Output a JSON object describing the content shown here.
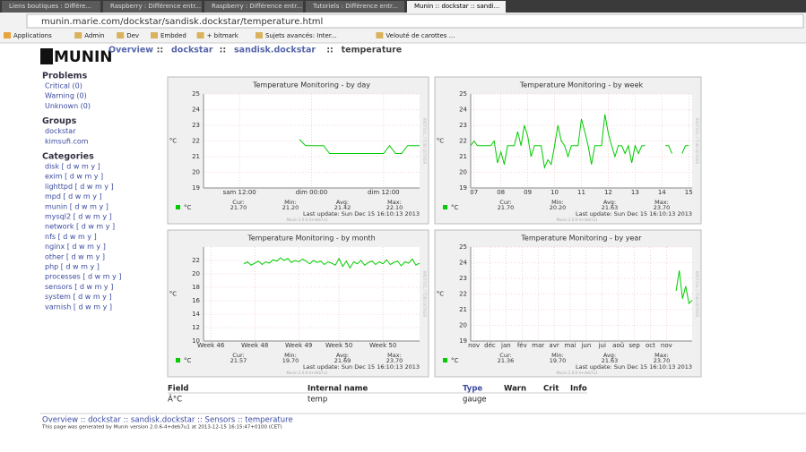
{
  "browser": {
    "tabs": [
      "Liens boutiques : Différe...",
      "Raspberry : Différence entr...",
      "Raspberry : Différence entr...",
      "Tutoriels : Différence entr...",
      "Munin :: dockstar :: sandi..."
    ],
    "url": "munin.marie.com/dockstar/sandisk.dockstar/temperature.html",
    "bookmarks": [
      "Applications",
      "Admin",
      "Dev",
      "Embded",
      "+ bitmark",
      "Sujets avancés: Inter...",
      "Velouté de carottes ..."
    ]
  },
  "header": {
    "logo": "MUNIN",
    "crumbs": [
      "Overview",
      "::",
      "dockstar",
      "::",
      "sandisk.dockstar",
      "::",
      "temperature"
    ]
  },
  "sidebar": {
    "problems_title": "Problems",
    "problems": [
      "Critical (0)",
      "Warning (0)",
      "Unknown (0)"
    ],
    "groups_title": "Groups",
    "groups": [
      "dockstar",
      "kimsufi.com"
    ],
    "categories_title": "Categories",
    "categories": [
      "disk [ d w m y ]",
      "exim [ d w m y ]",
      "lighttpd [ d w m y ]",
      "mpd [ d w m y ]",
      "munin [ d w m y ]",
      "mysql2 [ d w m y ]",
      "network [ d w m y ]",
      "nfs [ d w m y ]",
      "nginx [ d w m y ]",
      "other [ d w m y ]",
      "php [ d w m y ]",
      "processes [ d w m y ]",
      "sensors [ d w m y ]",
      "system [ d w m y ]",
      "varnish [ d w m y ]"
    ]
  },
  "chart_data": [
    {
      "type": "line",
      "title": "Temperature Monitoring - by day",
      "ylabel": "°C",
      "ylim": [
        19,
        25
      ],
      "yticks": [
        19,
        20,
        21,
        22,
        23,
        24,
        25
      ],
      "xlim": [
        0,
        36
      ],
      "xticks": [
        {
          "value": 6,
          "label": "sam 12:00"
        },
        {
          "value": 18,
          "label": "dim 00:00"
        },
        {
          "value": 30,
          "label": "dim 12:00"
        }
      ],
      "series": [
        {
          "name": "°C",
          "color": "#00cc00",
          "values": [
            null,
            null,
            null,
            null,
            null,
            null,
            null,
            null,
            null,
            null,
            null,
            null,
            null,
            null,
            null,
            null,
            22.1,
            21.7,
            21.7,
            21.7,
            21.7,
            21.2,
            21.2,
            21.2,
            21.2,
            21.2,
            21.2,
            21.2,
            21.2,
            21.2,
            21.2,
            21.7,
            21.2,
            21.2,
            21.7,
            21.7,
            21.7
          ]
        }
      ],
      "stats_labels": [
        "Cur:",
        "Min:",
        "Avg:",
        "Max:"
      ],
      "stats": [
        "21.70",
        "21.20",
        "21.42",
        "22.10"
      ],
      "last_update": "Last update:  Sun Dec 15 16:10:13 2013",
      "version": "Munin 2.0.6-4+deb7u1",
      "watermark": "RRDTOOL / TOBI OETIKER"
    },
    {
      "type": "line",
      "title": "Temperature Monitoring - by week",
      "ylabel": "°C",
      "ylim": [
        19,
        25
      ],
      "yticks": [
        19,
        20,
        21,
        22,
        23,
        24,
        25
      ],
      "xlim": [
        0,
        66
      ],
      "xticks": [
        {
          "value": 1,
          "label": "07"
        },
        {
          "value": 9,
          "label": "08"
        },
        {
          "value": 17,
          "label": "09"
        },
        {
          "value": 25,
          "label": "10"
        },
        {
          "value": 33,
          "label": "11"
        },
        {
          "value": 41,
          "label": "12"
        },
        {
          "value": 49,
          "label": "13"
        },
        {
          "value": 57,
          "label": "14"
        },
        {
          "value": 65,
          "label": "15"
        }
      ],
      "series": [
        {
          "name": "°C",
          "color": "#00cc00",
          "values": [
            21.7,
            22.0,
            21.7,
            21.7,
            21.7,
            21.7,
            21.7,
            22.0,
            20.6,
            21.3,
            20.5,
            21.7,
            21.7,
            21.7,
            22.6,
            21.7,
            23.0,
            22.3,
            21.0,
            21.7,
            21.7,
            21.7,
            20.3,
            20.8,
            20.5,
            21.7,
            23.0,
            22.0,
            21.7,
            21.0,
            21.7,
            21.7,
            21.7,
            23.4,
            22.6,
            21.7,
            20.5,
            21.7,
            21.7,
            21.7,
            23.7,
            22.5,
            21.7,
            21.0,
            21.7,
            21.7,
            21.2,
            21.7,
            20.6,
            21.7,
            21.2,
            21.7,
            21.7,
            null,
            null,
            null,
            null,
            null,
            21.7,
            21.7,
            21.2,
            null,
            null,
            21.2,
            21.7,
            21.7,
            null
          ]
        }
      ],
      "stats_labels": [
        "Cur:",
        "Min:",
        "Avg:",
        "Max:"
      ],
      "stats": [
        "21.70",
        "20.20",
        "21.63",
        "23.70"
      ],
      "last_update": "Last update:  Sun Dec 15 16:10:13 2013",
      "version": "Munin 2.0.6-4+deb7u1",
      "watermark": "RRDTOOL / TOBI OETIKER"
    },
    {
      "type": "line",
      "title": "Temperature Monitoring - by month",
      "ylabel": "°C",
      "ylim": [
        10,
        24
      ],
      "yticks": [
        10,
        12,
        14,
        16,
        18,
        20,
        22
      ],
      "xlim": [
        0,
        59
      ],
      "xticks": [
        {
          "value": 2,
          "label": "Week 46"
        },
        {
          "value": 14,
          "label": "Week 48"
        },
        {
          "value": 26,
          "label": "Week 49"
        },
        {
          "value": 37,
          "label": "Week 50"
        },
        {
          "value": 49,
          "label": "Week 50"
        }
      ],
      "series": [
        {
          "name": "°C",
          "color": "#00cc00",
          "values": [
            null,
            null,
            null,
            null,
            null,
            null,
            null,
            null,
            null,
            null,
            null,
            21.5,
            21.8,
            21.3,
            21.6,
            21.9,
            21.4,
            21.8,
            21.6,
            22.1,
            21.9,
            22.4,
            22.0,
            22.3,
            21.7,
            22.0,
            21.8,
            22.2,
            21.9,
            21.5,
            22.0,
            21.7,
            21.9,
            21.4,
            21.8,
            21.6,
            21.3,
            22.3,
            21.1,
            21.9,
            20.9,
            21.8,
            21.5,
            22.0,
            21.3,
            21.7,
            21.9,
            21.4,
            21.8,
            21.5,
            22.1,
            21.4,
            21.7,
            21.9,
            21.2,
            21.8,
            21.6,
            22.2,
            21.3,
            21.6
          ]
        }
      ],
      "stats_labels": [
        "Cur:",
        "Min:",
        "Avg:",
        "Max:"
      ],
      "stats": [
        "21.57",
        "19.70",
        "21.69",
        "23.70"
      ],
      "last_update": "Last update:  Sun Dec 15 16:10:13 2013",
      "version": "Munin 2.0.6-4+deb7u1",
      "watermark": "RRDTOOL / TOBI OETIKER"
    },
    {
      "type": "line",
      "title": "Temperature Monitoring - by year",
      "ylabel": "°C",
      "ylim": [
        19,
        25
      ],
      "yticks": [
        19,
        20,
        21,
        22,
        23,
        24,
        25
      ],
      "xlim": [
        0,
        69
      ],
      "xticks": [
        {
          "value": 1,
          "label": "nov"
        },
        {
          "value": 6,
          "label": "déc"
        },
        {
          "value": 11,
          "label": "jan"
        },
        {
          "value": 16,
          "label": "fév"
        },
        {
          "value": 21,
          "label": "mar"
        },
        {
          "value": 26,
          "label": "avr"
        },
        {
          "value": 31,
          "label": "mai"
        },
        {
          "value": 36,
          "label": "jun"
        },
        {
          "value": 41,
          "label": "jui"
        },
        {
          "value": 46,
          "label": "aoû"
        },
        {
          "value": 51,
          "label": "sep"
        },
        {
          "value": 56,
          "label": "oct"
        },
        {
          "value": 61,
          "label": "nov"
        }
      ],
      "series": [
        {
          "name": "°C",
          "color": "#00cc00",
          "values": [
            null,
            null,
            null,
            null,
            null,
            null,
            null,
            null,
            null,
            null,
            null,
            null,
            null,
            null,
            null,
            null,
            null,
            null,
            null,
            null,
            null,
            null,
            null,
            null,
            null,
            null,
            null,
            null,
            null,
            null,
            null,
            null,
            null,
            null,
            null,
            null,
            null,
            null,
            null,
            null,
            null,
            null,
            null,
            null,
            null,
            null,
            null,
            null,
            null,
            null,
            null,
            null,
            null,
            null,
            null,
            null,
            null,
            null,
            null,
            null,
            null,
            null,
            null,
            null,
            22.2,
            23.5,
            21.7,
            22.5,
            21.4,
            21.6
          ]
        }
      ],
      "stats_labels": [
        "Cur:",
        "Min:",
        "Avg:",
        "Max:"
      ],
      "stats": [
        "21.36",
        "19.70",
        "21.63",
        "23.70"
      ],
      "last_update": "Last update:  Sun Dec 15 16:10:13 2013",
      "version": "Munin 2.0.6-4+deb7u1",
      "watermark": "RRDTOOL / TOBI OETIKER"
    }
  ],
  "table": {
    "headers": [
      "Field",
      "Internal name",
      "Type",
      "Warn",
      "Crit",
      "Info"
    ],
    "rows": [
      [
        "Â°C",
        "temp",
        "gauge",
        "",
        "",
        ""
      ]
    ]
  },
  "footer": {
    "crumbs": "Overview :: dockstar :: sandisk.dockstar :: Sensors :: temperature",
    "generated": "This page was generated by Munin version 2.0.6-4+deb7u1 at 2013-12-15 16:15:47+0100 (CET)"
  }
}
